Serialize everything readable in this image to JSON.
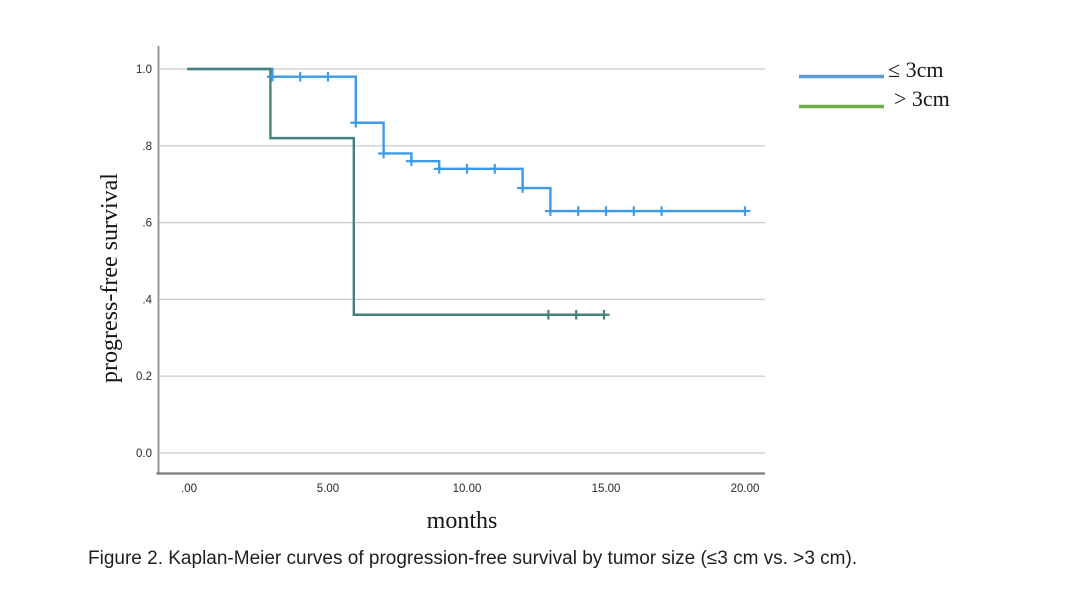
{
  "figure": {
    "caption": "Figure 2. Kaplan-Meier curves of progression-free survival by tumor size (≤3 cm vs. >3 cm)."
  },
  "chart_data": {
    "type": "line",
    "subtype": "kaplan_meier_step",
    "title": "",
    "xlabel": "months",
    "ylabel": "progress-free survival",
    "xlim": [
      -1,
      21
    ],
    "ylim": [
      0.0,
      1.05
    ],
    "grid": "horizontal",
    "legend_position": "outside-right",
    "x_ticks": [
      {
        "v": 0,
        "label": ".00"
      },
      {
        "v": 5,
        "label": "5.00"
      },
      {
        "v": 10,
        "label": "10.00"
      },
      {
        "v": 15,
        "label": "15.00"
      },
      {
        "v": 20,
        "label": "20.00"
      }
    ],
    "y_ticks": [
      {
        "v": 1.0,
        "label": "1.0"
      },
      {
        "v": 0.8,
        "label": ".8"
      },
      {
        "v": 0.6,
        "label": ".6"
      },
      {
        "v": 0.4,
        "label": ".4"
      },
      {
        "v": 0.2,
        "label": "0.2"
      },
      {
        "v": 0.0,
        "label": "0.0"
      }
    ],
    "series": [
      {
        "name": "≤ 3cm",
        "curve_color": "#3d9be7",
        "steps": [
          [
            0,
            1.0
          ],
          [
            3,
            0.98
          ],
          [
            6,
            0.86
          ],
          [
            7,
            0.78
          ],
          [
            8,
            0.76
          ],
          [
            9,
            0.74
          ],
          [
            12,
            0.69
          ],
          [
            13,
            0.63
          ]
        ],
        "end_x": 20,
        "censor_marks": [
          [
            3,
            0.98
          ],
          [
            4,
            0.98
          ],
          [
            5,
            0.98
          ],
          [
            6,
            0.86
          ],
          [
            7,
            0.78
          ],
          [
            8,
            0.76
          ],
          [
            9,
            0.74
          ],
          [
            10,
            0.74
          ],
          [
            11,
            0.74
          ],
          [
            12,
            0.69
          ],
          [
            13,
            0.63
          ],
          [
            14,
            0.63
          ],
          [
            15,
            0.63
          ],
          [
            16,
            0.63
          ],
          [
            17,
            0.63
          ],
          [
            20,
            0.63
          ]
        ]
      },
      {
        "name": "> 3cm",
        "curve_color": "#45817b",
        "steps": [
          [
            0,
            1.0
          ],
          [
            3,
            0.82
          ],
          [
            6,
            0.36
          ]
        ],
        "end_x": 15,
        "censor_marks": [
          [
            13,
            0.36
          ],
          [
            14,
            0.36
          ],
          [
            15,
            0.36
          ]
        ]
      }
    ]
  },
  "legend": {
    "items": [
      {
        "label": "≤ 3cm",
        "swatch_color": "#5b9bd5"
      },
      {
        "label": "> 3cm",
        "swatch_color": "#70ad47"
      }
    ]
  }
}
